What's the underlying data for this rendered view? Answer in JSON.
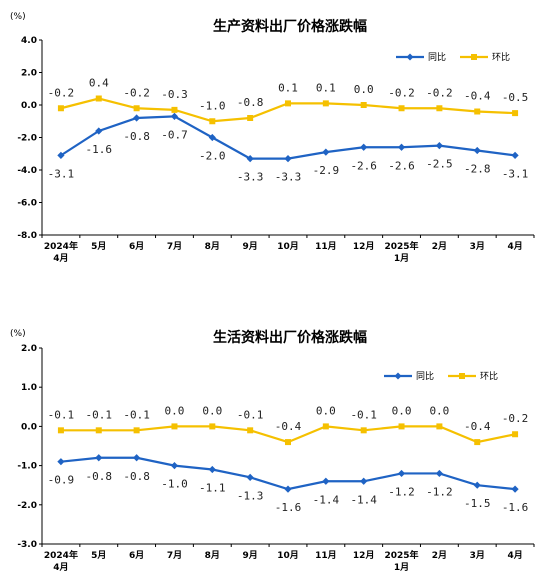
{
  "charts": {
    "unit": "(%)",
    "legend_yoy": "同比",
    "legend_mom": "环比"
  },
  "chart_data": [
    {
      "type": "line",
      "title": "生产资料出厂价格涨跌幅",
      "categories": [
        "2024年\n4月",
        "5月",
        "6月",
        "7月",
        "8月",
        "9月",
        "10月",
        "11月",
        "12月",
        "2025年\n1月",
        "2月",
        "3月",
        "4月"
      ],
      "ylim": [
        -8.0,
        4.0
      ],
      "yticks": [
        "4.0",
        "2.0",
        "0.0",
        "-2.0",
        "-4.0",
        "-6.0",
        "-8.0"
      ],
      "tick_values": [
        4,
        2,
        0,
        -2,
        -4,
        -6,
        -8
      ],
      "series": [
        {
          "name": "同比",
          "color": "#1f63c4",
          "values": [
            -3.1,
            -1.6,
            -0.8,
            -0.7,
            -2.0,
            -3.3,
            -3.3,
            -2.9,
            -2.6,
            -2.6,
            -2.5,
            -2.8,
            -3.1
          ],
          "labels": [
            "-3.1",
            "-1.6",
            "-0.8",
            "-0.7",
            "-2.0",
            "-3.3",
            "-3.3",
            "-2.9",
            "-2.6",
            "-2.6",
            "-2.5",
            "-2.8",
            "-3.1"
          ]
        },
        {
          "name": "环比",
          "color": "#f5c000",
          "values": [
            -0.2,
            0.4,
            -0.2,
            -0.3,
            -1.0,
            -0.8,
            0.1,
            0.1,
            0.0,
            -0.2,
            -0.2,
            -0.4,
            -0.5
          ],
          "labels": [
            "-0.2",
            "0.4",
            "-0.2",
            "-0.3",
            "-1.0",
            "-0.8",
            "0.1",
            "0.1",
            "0.0",
            "-0.2",
            "-0.2",
            "-0.4",
            "-0.5"
          ]
        }
      ]
    },
    {
      "type": "line",
      "title": "生活资料出厂价格涨跌幅",
      "categories": [
        "2024年\n4月",
        "5月",
        "6月",
        "7月",
        "8月",
        "9月",
        "10月",
        "11月",
        "12月",
        "2025年\n1月",
        "2月",
        "3月",
        "4月"
      ],
      "ylim": [
        -3.0,
        2.0
      ],
      "yticks": [
        "2.0",
        "1.0",
        "0.0",
        "-1.0",
        "-2.0",
        "-3.0"
      ],
      "tick_values": [
        2,
        1,
        0,
        -1,
        -2,
        -3
      ],
      "series": [
        {
          "name": "同比",
          "color": "#1f63c4",
          "values": [
            -0.9,
            -0.8,
            -0.8,
            -1.0,
            -1.1,
            -1.3,
            -1.6,
            -1.4,
            -1.4,
            -1.2,
            -1.2,
            -1.5,
            -1.6
          ],
          "labels": [
            "-0.9",
            "-0.8",
            "-0.8",
            "-1.0",
            "-1.1",
            "-1.3",
            "-1.6",
            "-1.4",
            "-1.4",
            "-1.2",
            "-1.2",
            "-1.5",
            "-1.6"
          ]
        },
        {
          "name": "环比",
          "color": "#f5c000",
          "values": [
            -0.1,
            -0.1,
            -0.1,
            0.0,
            0.0,
            -0.1,
            -0.4,
            0.0,
            -0.1,
            0.0,
            0.0,
            -0.4,
            -0.2
          ],
          "labels": [
            "-0.1",
            "-0.1",
            "-0.1",
            "0.0",
            "0.0",
            "-0.1",
            "-0.4",
            "0.0",
            "-0.1",
            "0.0",
            "0.0",
            "-0.4",
            "-0.2"
          ]
        }
      ]
    }
  ]
}
